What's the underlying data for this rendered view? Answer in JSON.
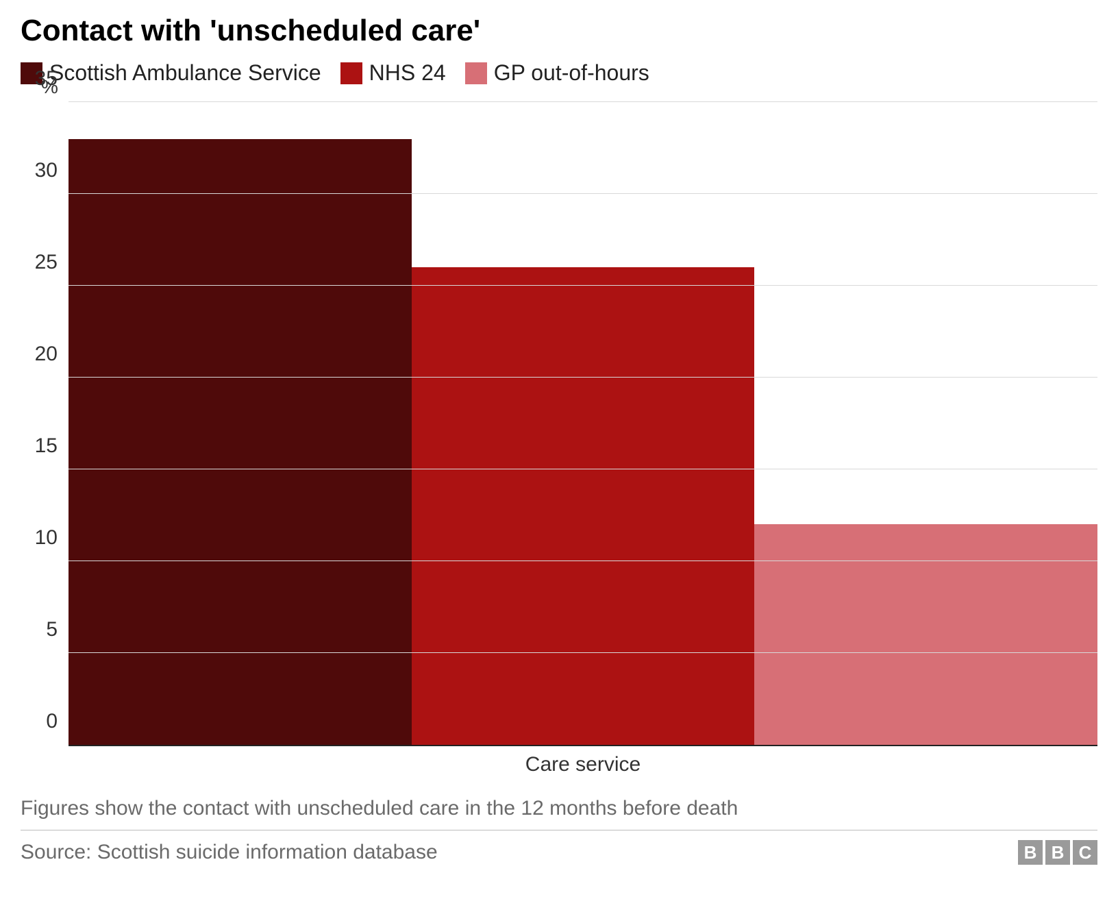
{
  "chart": {
    "type": "bar",
    "title": "Contact with 'unscheduled care'",
    "title_fontsize": 44,
    "title_fontweight": "bold",
    "y_unit_label": "%",
    "x_axis_label": "Care service",
    "label_fontsize": 30,
    "ylim": [
      0,
      35
    ],
    "ytick_step": 5,
    "yticks": [
      0,
      5,
      10,
      15,
      20,
      25,
      30,
      35
    ],
    "grid_color": "#d9d9d9",
    "axis_color": "#222222",
    "background_color": "#ffffff",
    "bar_width": 1.0,
    "categories": [
      "Scottish Ambulance Service",
      "NHS 24",
      "GP out-of-hours"
    ],
    "values": [
      33,
      26,
      12
    ],
    "bar_colors": [
      "#4f0a0a",
      "#ac1212",
      "#d76f76"
    ],
    "legend": {
      "items": [
        {
          "label": "Scottish Ambulance Service",
          "color": "#4f0a0a"
        },
        {
          "label": "NHS 24",
          "color": "#ac1212"
        },
        {
          "label": "GP out-of-hours",
          "color": "#d76f76"
        }
      ],
      "swatch_size": 32,
      "fontsize": 32
    }
  },
  "footer": {
    "footnote": "Figures show the contact with unscheduled care in the 12 months before death",
    "source": "Source: Scottish suicide information database",
    "divider_color": "#bdbdbd",
    "text_color": "#6a6a6a",
    "fontsize": 30,
    "logo": {
      "letters": [
        "B",
        "B",
        "C"
      ],
      "block_bg": "#9a9a9a",
      "block_fg": "#ffffff"
    }
  }
}
